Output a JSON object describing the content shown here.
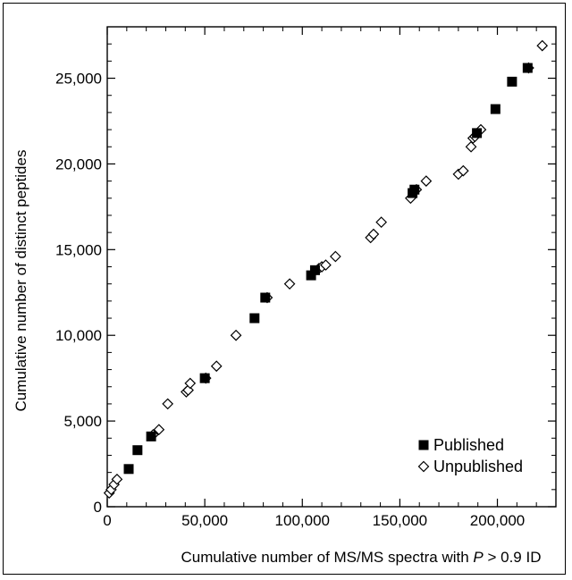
{
  "chart_data": {
    "type": "scatter",
    "xlabel_prefix": "Cumulative number of MS/MS spectra with ",
    "xlabel_var": "P",
    "xlabel_suffix": " > 0.9 ID",
    "ylabel": "Cumulative number of distinct peptides",
    "xlim": [
      0,
      230000
    ],
    "ylim": [
      0,
      28000
    ],
    "x_ticks": [
      0,
      50000,
      100000,
      150000,
      200000
    ],
    "x_tick_labels": [
      "0",
      "50,000",
      "100,000",
      "150,000",
      "200,000"
    ],
    "y_ticks": [
      0,
      5000,
      10000,
      15000,
      20000,
      25000
    ],
    "y_tick_labels": [
      "0",
      "5,000",
      "10,000",
      "15,000",
      "20,000",
      "25,000"
    ],
    "legend_position": "bottom-right",
    "series": [
      {
        "name": "Published",
        "marker": "filled-square",
        "color": "#000000",
        "points": [
          [
            11000,
            2200
          ],
          [
            15500,
            3300
          ],
          [
            22500,
            4100
          ],
          [
            50000,
            7500
          ],
          [
            75500,
            11000
          ],
          [
            81000,
            12200
          ],
          [
            104500,
            13500
          ],
          [
            106500,
            13800
          ],
          [
            156500,
            18300
          ],
          [
            157500,
            18500
          ],
          [
            189500,
            21800
          ],
          [
            199000,
            23200
          ],
          [
            207500,
            24800
          ],
          [
            215500,
            25600
          ]
        ]
      },
      {
        "name": "Unpublished",
        "marker": "open-diamond",
        "color": "#000000",
        "points": [
          [
            1000,
            800
          ],
          [
            2000,
            1000
          ],
          [
            3500,
            1300
          ],
          [
            5000,
            1600
          ],
          [
            23500,
            4200
          ],
          [
            26500,
            4500
          ],
          [
            31000,
            6000
          ],
          [
            40500,
            6700
          ],
          [
            41500,
            6800
          ],
          [
            42500,
            7200
          ],
          [
            50500,
            7500
          ],
          [
            56000,
            8200
          ],
          [
            66000,
            10000
          ],
          [
            82000,
            12200
          ],
          [
            93500,
            13000
          ],
          [
            108500,
            13900
          ],
          [
            110000,
            14000
          ],
          [
            112000,
            14100
          ],
          [
            117000,
            14600
          ],
          [
            135000,
            15700
          ],
          [
            136500,
            15900
          ],
          [
            140500,
            16600
          ],
          [
            155500,
            18000
          ],
          [
            158500,
            18500
          ],
          [
            163500,
            19000
          ],
          [
            180000,
            19400
          ],
          [
            182500,
            19600
          ],
          [
            186500,
            21000
          ],
          [
            187500,
            21500
          ],
          [
            188500,
            21600
          ],
          [
            191500,
            22000
          ],
          [
            216000,
            25600
          ],
          [
            223000,
            26900
          ]
        ]
      }
    ]
  }
}
